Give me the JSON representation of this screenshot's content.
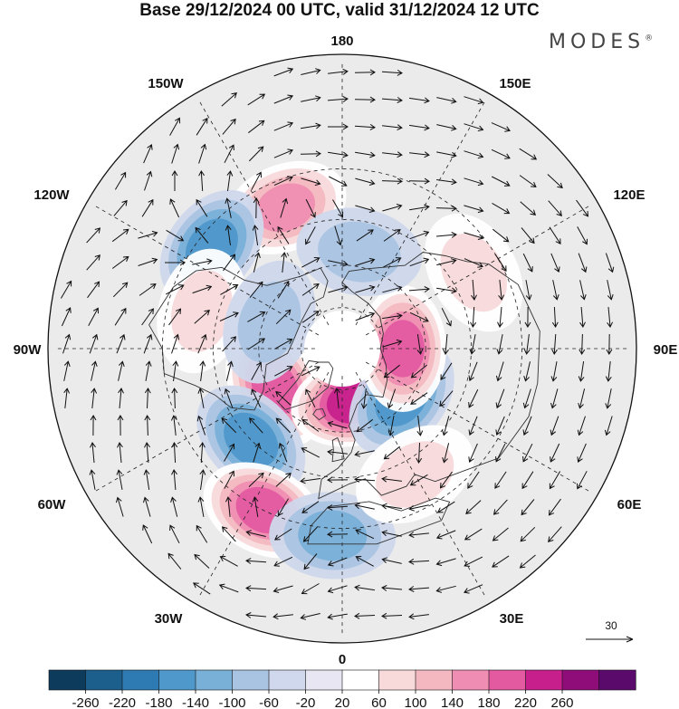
{
  "title": "Base 29/12/2024 00 UTC, valid 31/12/2024 12 UTC",
  "brand": "MODES",
  "brand_mark": "®",
  "longitude_labels": {
    "top": "180",
    "bottom": "0",
    "left": "90W",
    "right": "90E",
    "upper_left_outer": "150W",
    "upper_left_inner": "120W",
    "upper_right_outer": "150E",
    "upper_right_inner": "120E",
    "lower_left_inner": "60W",
    "lower_left_outer": "30W",
    "lower_right_inner": "60E",
    "lower_right_outer": "30E"
  },
  "reference_vector": {
    "label": "30"
  },
  "colorbar": {
    "ticks": [
      "-260",
      "-220",
      "-180",
      "-140",
      "-100",
      "-60",
      "-20",
      "20",
      "60",
      "100",
      "140",
      "180",
      "220",
      "260"
    ],
    "colors": [
      "#0d3b5c",
      "#1c5e8c",
      "#2e7bb4",
      "#4f98cb",
      "#79b0d8",
      "#a9c4e3",
      "#cfd8ec",
      "#e7e6f2",
      "#ffffff",
      "#f8dadb",
      "#f3b8c0",
      "#ef8db2",
      "#e35aa1",
      "#c7208d",
      "#8e0d79",
      "#5a0a6b"
    ]
  },
  "anomaly_centers": [
    {
      "name": "pos-north-pacific",
      "lon": -158,
      "lat": 38,
      "value": 160
    },
    {
      "name": "neg-alaska",
      "lon": -128,
      "lat": 34,
      "value": -160
    },
    {
      "name": "pos-greenland",
      "lon": -60,
      "lat": 62,
      "value": 200
    },
    {
      "name": "neg-labrador",
      "lon": -45,
      "lat": 45,
      "value": -150
    },
    {
      "name": "pos-north-atlantic",
      "lon": -26,
      "lat": 30,
      "value": 200
    },
    {
      "name": "neg-iberia",
      "lon": -3,
      "lat": 28,
      "value": -130
    },
    {
      "name": "pos-scandinavia",
      "lon": 12,
      "lat": 70,
      "value": 220
    },
    {
      "name": "neg-west-siberia",
      "lon": 50,
      "lat": 62,
      "value": -160
    },
    {
      "name": "pos-central-siberia",
      "lon": 90,
      "lat": 68,
      "value": 180
    },
    {
      "name": "pos-east-asia",
      "lon": 120,
      "lat": 38,
      "value": 90
    },
    {
      "name": "neg-east-siberia",
      "lon": 170,
      "lat": 55,
      "value": -90
    },
    {
      "name": "pos-north-america-west",
      "lon": -105,
      "lat": 40,
      "value": 60
    },
    {
      "name": "neg-hudson",
      "lon": -110,
      "lat": 62,
      "value": -70
    },
    {
      "name": "pos-east-europe",
      "lon": 30,
      "lat": 40,
      "value": 90
    }
  ]
}
